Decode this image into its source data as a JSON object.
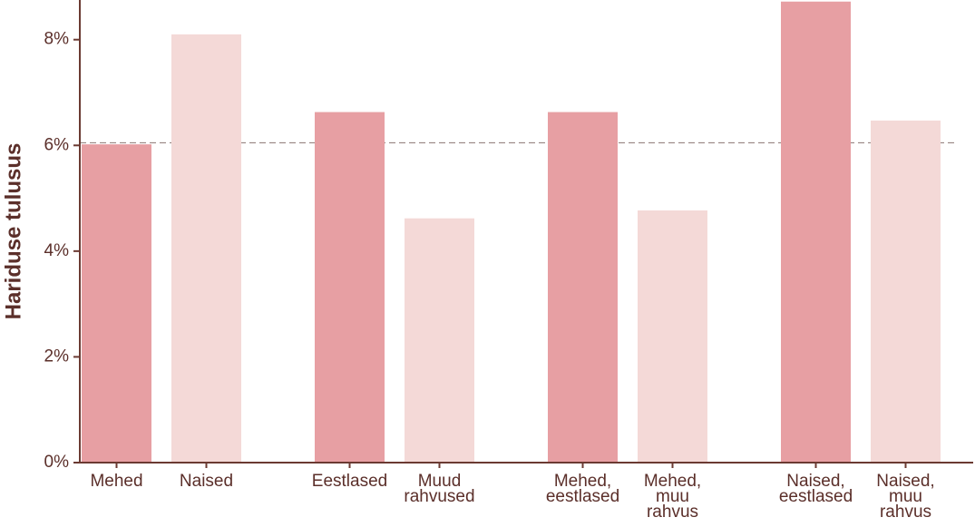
{
  "chart_data": {
    "type": "bar",
    "y_label": "Hariduse tulusus",
    "categories": [
      "Mehed",
      "Naised",
      "Eestlased",
      "Muud\nrahvused",
      "Mehed,\neestlased",
      "Mehed,\nmuu\nrahvus",
      "Naised,\neestlased",
      "Naised,\nmuu\nrahvus"
    ],
    "values": [
      6.02,
      8.1,
      6.63,
      4.62,
      6.63,
      4.77,
      8.72,
      6.47
    ],
    "colors": [
      "#e79fa3",
      "#f4d9d7",
      "#e79fa3",
      "#f4d9d7",
      "#e79fa3",
      "#f4d9d7",
      "#e79fa3",
      "#f4d9d7"
    ],
    "reference_line": 6.05,
    "ylim": [
      0,
      8.75
    ],
    "yticks": [
      {
        "value": 0,
        "label": "0%"
      },
      {
        "value": 2,
        "label": "2%"
      },
      {
        "value": 4,
        "label": "4%"
      },
      {
        "value": 6,
        "label": "6%"
      },
      {
        "value": 8,
        "label": "8%"
      }
    ],
    "grid": false
  }
}
